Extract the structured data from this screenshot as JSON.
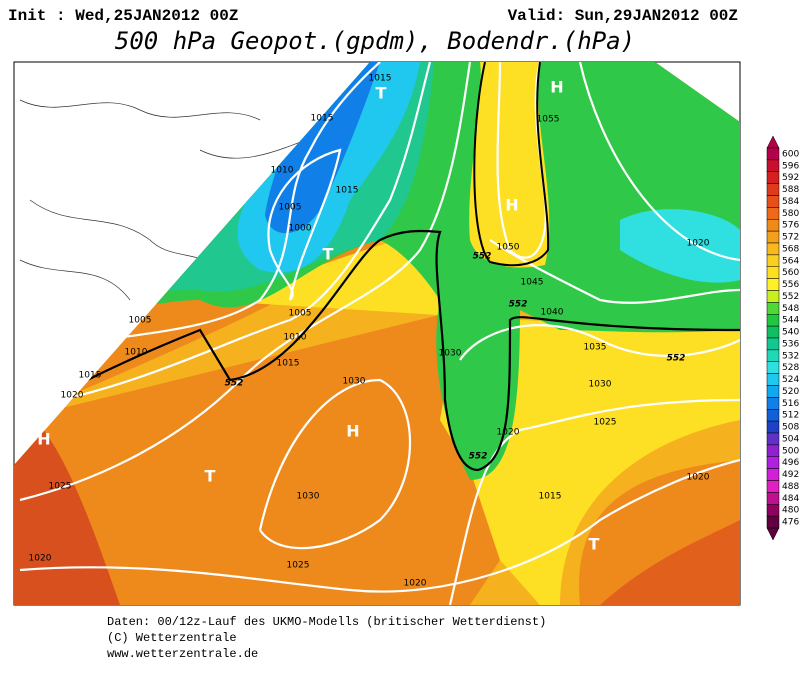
{
  "header": {
    "init": "Init : Wed,25JAN2012 00Z",
    "valid": "Valid: Sun,29JAN2012 00Z",
    "title": "500 hPa Geopot.(gpdm), Bodendr.(hPa)"
  },
  "map": {
    "labels": [
      "1015",
      "1015",
      "1010",
      "1015",
      "1005",
      "1000",
      "1005",
      "1010",
      "1015",
      "1020",
      "1025",
      "1020",
      "1030",
      "1025",
      "1020",
      "1015",
      "1020",
      "1020",
      "1025",
      "1030",
      "1035",
      "1040",
      "1045",
      "1050",
      "1055",
      "1020",
      "1005",
      "1010",
      "1015",
      "1030",
      "1030"
    ],
    "centers": [
      "T",
      "H",
      "H",
      "T",
      "H",
      "T",
      "H",
      "T"
    ],
    "contour_labels": [
      "552",
      "552",
      "552",
      "552",
      "552"
    ]
  },
  "colorbar": {
    "ticks": [
      600,
      596,
      592,
      588,
      584,
      580,
      576,
      572,
      568,
      564,
      560,
      556,
      552,
      548,
      544,
      540,
      536,
      532,
      528,
      524,
      520,
      516,
      512,
      508,
      504,
      500,
      496,
      492,
      488,
      484,
      480,
      476
    ],
    "colors": [
      "#b4004a",
      "#c8102e",
      "#d42020",
      "#e03a1e",
      "#e8501a",
      "#ee6a18",
      "#f08a18",
      "#f5a01c",
      "#f8b81e",
      "#fad020",
      "#fce020",
      "#fff028",
      "#c8f020",
      "#50d838",
      "#20c840",
      "#10c060",
      "#10c890",
      "#20d8b8",
      "#30e0e0",
      "#20c8f0",
      "#10a8f0",
      "#1080e8",
      "#1060d8",
      "#2040c8",
      "#6030c8",
      "#9020d0",
      "#b020e0",
      "#d020d8",
      "#e020c0",
      "#c01090",
      "#900060",
      "#600040"
    ]
  },
  "footer": {
    "line1": "Daten: 00/12z-Lauf des UKMO-Modells (britischer Wetterdienst)",
    "line2": "(C) Wetterzentrale",
    "line3": "www.wetterzentrale.de"
  }
}
